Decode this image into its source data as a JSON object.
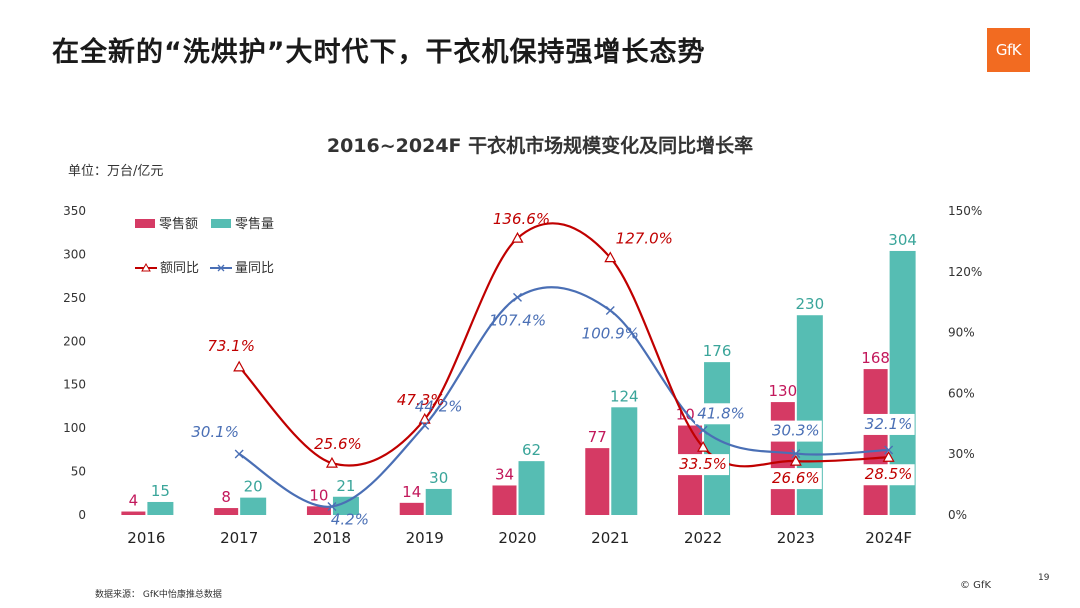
{
  "slide": {
    "title": "在全新的“洗烘护”大时代下，干衣机保持强增长态势",
    "logo_text": "GfK",
    "unit": "单位：万台/亿元",
    "source": "数据来源：   GfK中怡康推总数据",
    "copyright": "© GfK",
    "page_number": "19"
  },
  "colors": {
    "amount_bar": "#d53a64",
    "volume_bar": "#56bdb3",
    "amount_line": "#c00000",
    "volume_line": "#4a6fb5",
    "logo": "#f26b21"
  },
  "chart_data": {
    "type": "bar",
    "title": "2016~2024F 干衣机市场规模变化及同比增长率",
    "categories": [
      "2016",
      "2017",
      "2018",
      "2019",
      "2020",
      "2021",
      "2022",
      "2023",
      "2024F"
    ],
    "y_left": {
      "ylim": [
        0,
        350
      ],
      "ticks": [
        "0",
        "50",
        "100",
        "150",
        "200",
        "250",
        "300",
        "350"
      ]
    },
    "y_right": {
      "ylim": [
        0,
        150
      ],
      "ticks": [
        "0%",
        "30%",
        "60%",
        "90%",
        "120%",
        "150%"
      ]
    },
    "series": [
      {
        "name": "零售额",
        "type": "bar",
        "axis": "left",
        "values": [
          4,
          8,
          10,
          14,
          34,
          77,
          103,
          130,
          168
        ],
        "labels": [
          "4",
          "8",
          "10",
          "14",
          "34",
          "77",
          "103",
          "130",
          "168"
        ]
      },
      {
        "name": "零售量",
        "type": "bar",
        "axis": "left",
        "values": [
          15,
          20,
          21,
          30,
          62,
          124,
          176,
          230,
          304
        ],
        "labels": [
          "15",
          "20",
          "21",
          "30",
          "62",
          "124",
          "176",
          "230",
          "304"
        ]
      },
      {
        "name": "额同比",
        "type": "line",
        "axis": "right",
        "marker": "triangle",
        "values": [
          null,
          73.1,
          25.6,
          47.3,
          136.6,
          127.0,
          33.5,
          26.6,
          28.5
        ],
        "labels": [
          "",
          "73.1%",
          "25.6%",
          "47.3%",
          "136.6%",
          "127.0%",
          "33.5%",
          "26.6%",
          "28.5%"
        ]
      },
      {
        "name": "量同比",
        "type": "line",
        "axis": "right",
        "marker": "x",
        "values": [
          null,
          30.1,
          4.2,
          44.2,
          107.4,
          100.9,
          41.8,
          30.3,
          32.1
        ],
        "labels": [
          "",
          "30.1%",
          "4.2%",
          "44.2%",
          "107.4%",
          "100.9%",
          "41.8%",
          "30.3%",
          "32.1%"
        ]
      }
    ],
    "legend": [
      {
        "name": "零售额",
        "symbol": "bar"
      },
      {
        "name": "零售量",
        "symbol": "bar"
      },
      {
        "name": "额同比",
        "symbol": "line-triangle"
      },
      {
        "name": "量同比",
        "symbol": "line-x"
      }
    ],
    "legend_position": "top-left",
    "grid": false
  }
}
